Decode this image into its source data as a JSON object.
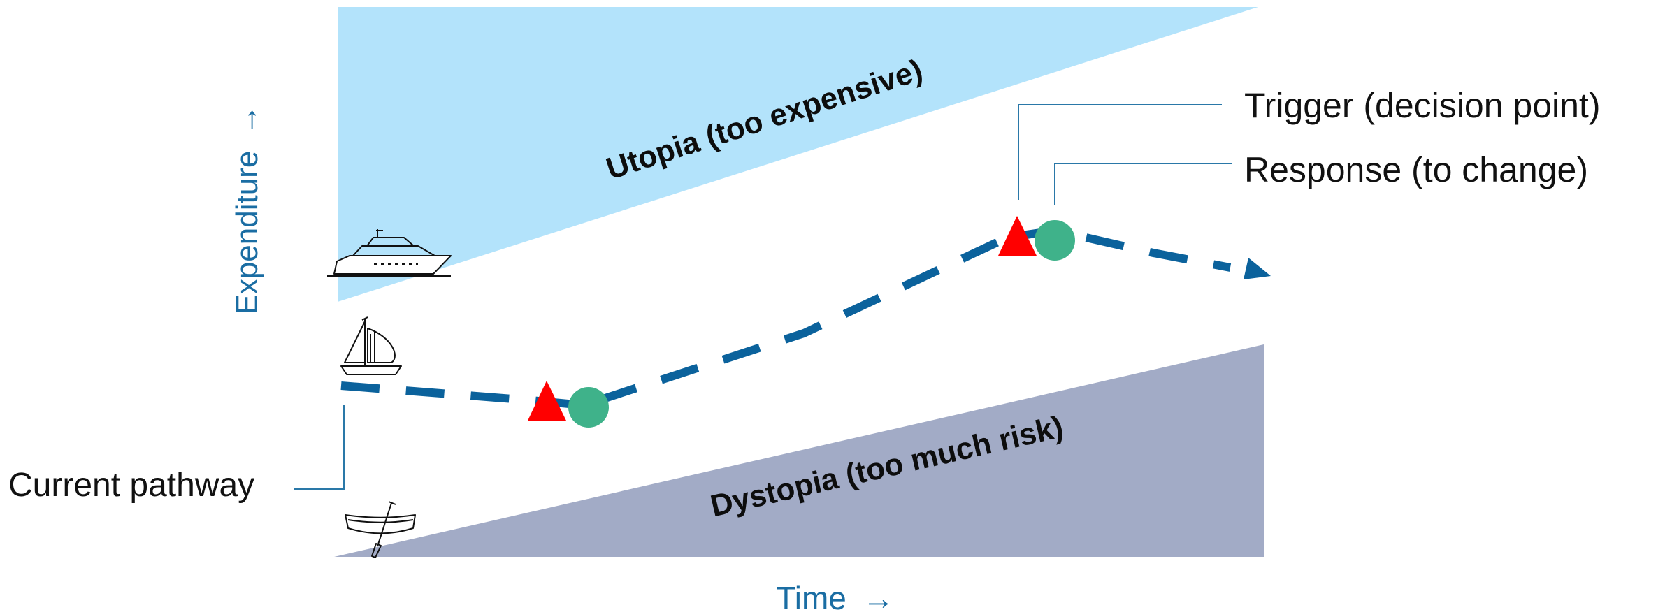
{
  "axes": {
    "x_label": "Time",
    "y_label": "Expenditure",
    "x_arrow": "→",
    "y_arrow": "→"
  },
  "regions": {
    "utopia_label": "Utopia (too expensive)",
    "dystopia_label": "Dystopia (too much risk)"
  },
  "legend": {
    "trigger_label": "Trigger (decision point)",
    "response_label": "Response (to change)"
  },
  "annotations": {
    "current_pathway_label": "Current pathway"
  },
  "icons": {
    "top": "yacht-icon",
    "middle": "sailboat-icon",
    "bottom": "canoe-icon"
  },
  "colors": {
    "utopia_fill": "#b3e3fb",
    "dystopia_fill": "#a2abc6",
    "pathway": "#0b629c",
    "axis_text": "#1a6da3",
    "trigger": "#ff0000",
    "response": "#3fb28a",
    "leader_line": "#2a78a8"
  }
}
